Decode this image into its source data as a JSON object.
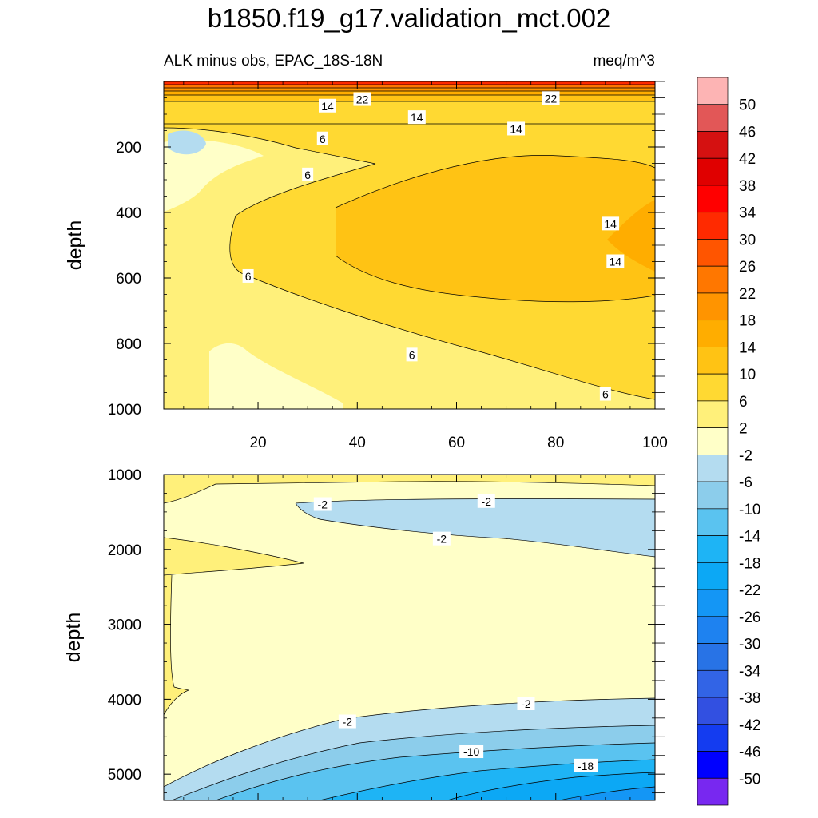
{
  "title": "b1850.f19_g17.validation_mct.002",
  "chart_data": {
    "type": "heatmap",
    "subtitle_left": "ALK minus obs, EPAC_18S-18N",
    "subtitle_right": "meq/m^3",
    "colorbar": {
      "labels": [
        "50",
        "46",
        "42",
        "38",
        "34",
        "30",
        "26",
        "22",
        "18",
        "14",
        "10",
        "6",
        "2",
        "-2",
        "-6",
        "-10",
        "-14",
        "-18",
        "-22",
        "-26",
        "-30",
        "-34",
        "-38",
        "-42",
        "-46",
        "-50"
      ],
      "colors": [
        "#fdb4b4",
        "#e25757",
        "#d51111",
        "#e00000",
        "#ff0000",
        "#ff2a00",
        "#ff5500",
        "#ff7700",
        "#ff9400",
        "#ffad00",
        "#ffc314",
        "#ffd932",
        "#fff07a",
        "#ffffc8",
        "#b4dcf0",
        "#8ccdeb",
        "#5ac3f0",
        "#1eb4f5",
        "#0ca8f5",
        "#1496f5",
        "#1e82f0",
        "#2873e6",
        "#3264e6",
        "#3250e1",
        "#143cf0",
        "#0000ff",
        "#7828f0"
      ]
    },
    "panels": [
      {
        "xlim": [
          1,
          100
        ],
        "ylim": [
          0,
          1000
        ],
        "x_ticks": [
          "20",
          "40",
          "60",
          "80",
          "100"
        ],
        "y_ticks": [
          "200",
          "400",
          "600",
          "800",
          "1000"
        ],
        "ylabel": "depth",
        "contour_labels": [
          {
            "text": "14",
            "x": 34,
            "y": 75
          },
          {
            "text": "22",
            "x": 41,
            "y": 55
          },
          {
            "text": "14",
            "x": 52,
            "y": 110
          },
          {
            "text": "22",
            "x": 79,
            "y": 52
          },
          {
            "text": "14",
            "x": 72,
            "y": 145
          },
          {
            "text": "6",
            "x": 33,
            "y": 175
          },
          {
            "text": "6",
            "x": 30,
            "y": 285
          },
          {
            "text": "14",
            "x": 91,
            "y": 435
          },
          {
            "text": "14",
            "x": 92,
            "y": 550
          },
          {
            "text": "6",
            "x": 18,
            "y": 595
          },
          {
            "text": "6",
            "x": 51,
            "y": 835
          },
          {
            "text": "6",
            "x": 90,
            "y": 955
          }
        ]
      },
      {
        "xlim": [
          1,
          100
        ],
        "ylim": [
          1000,
          5350
        ],
        "x_ticks": [],
        "y_ticks": [
          "1000",
          "2000",
          "3000",
          "4000",
          "5000"
        ],
        "ylabel": "depth",
        "contour_labels": [
          {
            "text": "-2",
            "x": 33,
            "y": 1400
          },
          {
            "text": "-2",
            "x": 66,
            "y": 1360
          },
          {
            "text": "-2",
            "x": 57,
            "y": 1860
          },
          {
            "text": "-2",
            "x": 74,
            "y": 4060
          },
          {
            "text": "-2",
            "x": 38,
            "y": 4300
          },
          {
            "text": "-10",
            "x": 63,
            "y": 4700
          },
          {
            "text": "-18",
            "x": 86,
            "y": 4890
          }
        ]
      }
    ]
  }
}
